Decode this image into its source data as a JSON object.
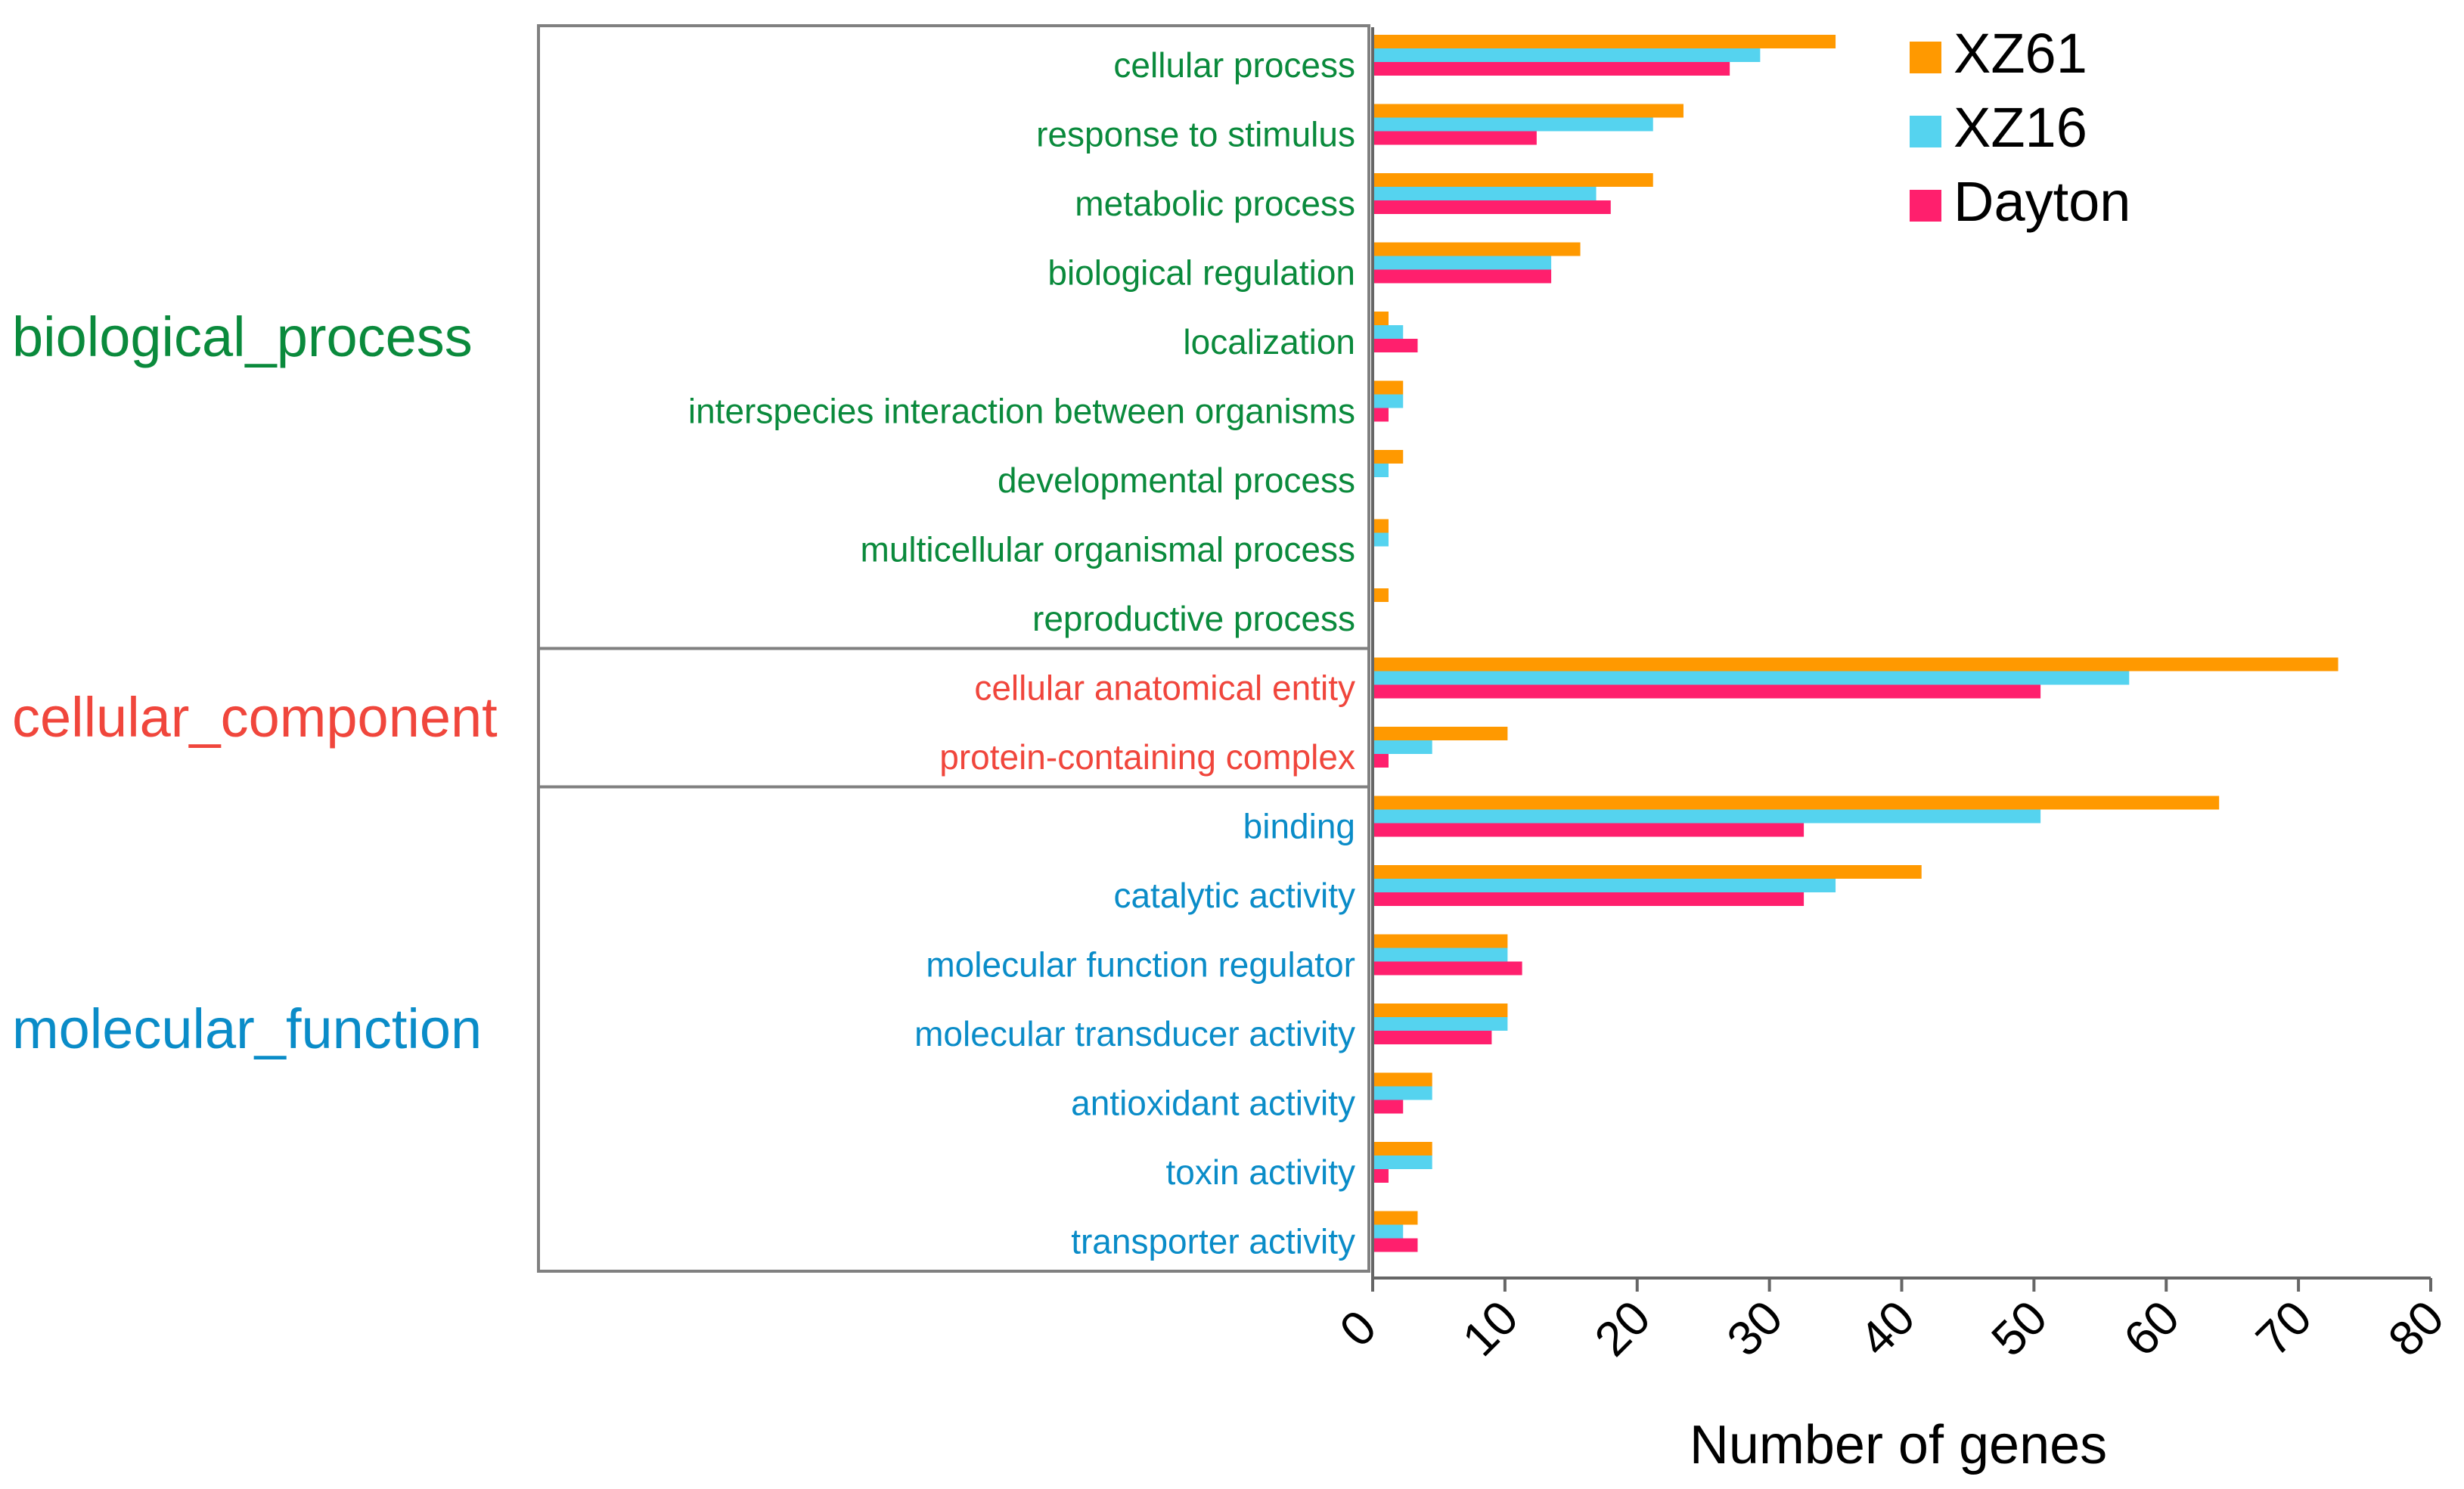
{
  "chart_data": {
    "type": "bar",
    "orientation": "horizontal",
    "xlabel": "Number of genes",
    "xlim": [
      0,
      80
    ],
    "xticks": [
      0,
      10,
      20,
      30,
      40,
      50,
      60,
      70,
      80
    ],
    "groups": [
      {
        "name": "biological_process",
        "color": "#0a8a3c",
        "categories": [
          "cellular process",
          "response to stimulus",
          "metabolic process",
          "biological regulation",
          "localization",
          "interspecies interaction between organisms",
          "developmental process",
          "multicellular organismal process",
          "reproductive process"
        ]
      },
      {
        "name": "cellular_component",
        "color": "#f0463c",
        "categories": [
          "cellular anatomical entity",
          "protein-containing complex"
        ]
      },
      {
        "name": "molecular_function",
        "color": "#0a8cc8",
        "categories": [
          "binding",
          "catalytic activity",
          "molecular function regulator",
          "molecular transducer activity",
          "antioxidant activity",
          "toxin activity",
          "transporter activity"
        ]
      }
    ],
    "series": [
      {
        "name": "XZ61",
        "color": "#ff9900",
        "values": [
          35,
          23.5,
          21.2,
          15.7,
          1.2,
          2.3,
          2.3,
          1.2,
          1.2,
          73,
          10.2,
          64,
          41.5,
          10.2,
          10.2,
          4.5,
          4.5,
          3.4
        ]
      },
      {
        "name": "XZ16",
        "color": "#55d3ef",
        "values": [
          29.3,
          21.2,
          16.9,
          13.5,
          2.3,
          2.3,
          1.2,
          1.2,
          0,
          57.2,
          4.5,
          50.5,
          35,
          10.2,
          10.2,
          4.5,
          4.5,
          2.3
        ]
      },
      {
        "name": "Dayton",
        "color": "#ff1f6d",
        "values": [
          27,
          12.4,
          18,
          13.5,
          3.4,
          1.2,
          0,
          0,
          0,
          50.5,
          1.2,
          32.6,
          32.6,
          11.3,
          9,
          2.3,
          1.2,
          3.4
        ]
      }
    ]
  }
}
